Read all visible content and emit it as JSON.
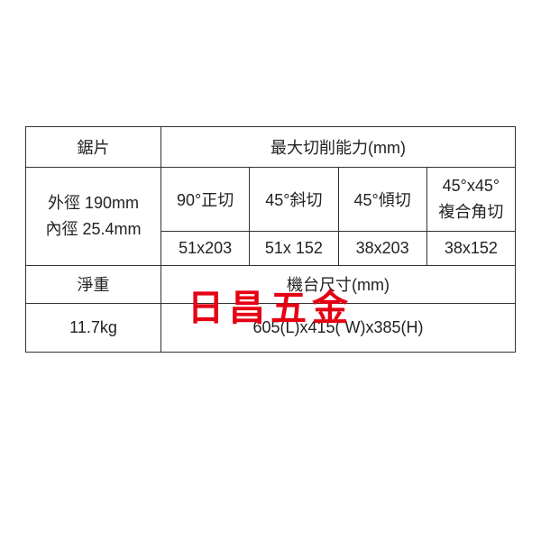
{
  "table": {
    "row1": {
      "blade_label": "鋸片",
      "capacity_header": "最大切削能力(mm)"
    },
    "row2": {
      "outer_dia_line1": "外徑 190mm",
      "outer_dia_line2": "內徑 25.4mm",
      "cut90": "90°正切",
      "cut45miter": "45°斜切",
      "cut45bevel": "45°傾切",
      "compound_line1": "45°x45°",
      "compound_line2": "複合角切"
    },
    "row2b": {
      "v1": "51x203",
      "v2": "51x 152",
      "v3": "38x203",
      "v4": "38x152"
    },
    "row3": {
      "netweight_label": "淨重",
      "dim_header": "機台尺寸(mm)"
    },
    "row4": {
      "weight_value": "11.7kg",
      "dim_value": "605(L)x415( W)x385(H)"
    }
  },
  "watermark_text": "日昌五金",
  "colors": {
    "border": "#333333",
    "text": "#222222",
    "watermark": "#e60012",
    "background": "#ffffff"
  }
}
